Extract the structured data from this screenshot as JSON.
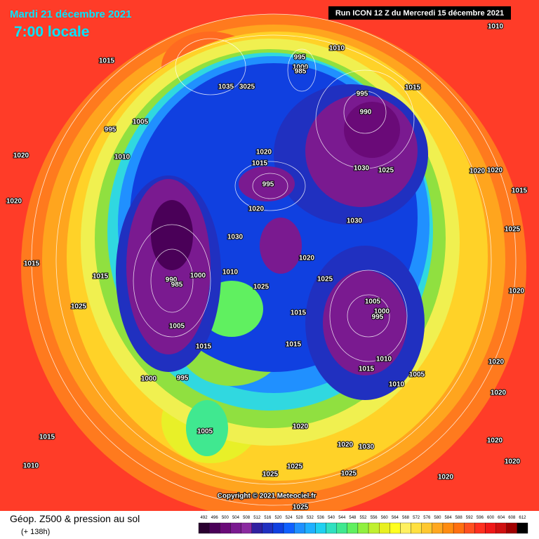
{
  "header": {
    "date": "Mardi 21 décembre 2021",
    "time": "7:00 locale",
    "run": "Run ICON 12 Z du Mercredi 15 décembre 2021"
  },
  "copyright": "Copyright © 2021 Meteociel.fr",
  "legend": {
    "title": "Géop. Z500 & pression au sol",
    "subtitle": "(+ 138h)",
    "ticks": [
      "492",
      "496",
      "500",
      "504",
      "508",
      "512",
      "516",
      "520",
      "524",
      "528",
      "532",
      "536",
      "540",
      "544",
      "548",
      "552",
      "556",
      "560",
      "564",
      "568",
      "572",
      "576",
      "580",
      "584",
      "588",
      "592",
      "596",
      "600",
      "604",
      "608",
      "612"
    ],
    "colors": [
      "#2a0030",
      "#4a0058",
      "#6a0a78",
      "#7a1a90",
      "#8a2aa0",
      "#3020a0",
      "#2030c0",
      "#1040e0",
      "#1060ff",
      "#2090ff",
      "#20b0ff",
      "#20d0f0",
      "#30e0c0",
      "#40e890",
      "#60f060",
      "#90f040",
      "#c0f030",
      "#e8f020",
      "#ffff20",
      "#fff060",
      "#ffe040",
      "#ffc830",
      "#ffa820",
      "#ff8c10",
      "#ff7010",
      "#ff5020",
      "#ff3020",
      "#f01818",
      "#d01010",
      "#a00000",
      "#000000"
    ]
  },
  "pressure_labels": [
    "1010",
    "1015",
    "1010",
    "995",
    "1000",
    "985",
    "1005",
    "995",
    "1010",
    "1020",
    "1020",
    "1015",
    "1025",
    "1015",
    "990",
    "985",
    "1000",
    "1005",
    "1015",
    "1000",
    "995",
    "1005",
    "1015",
    "1010",
    "1035",
    "3025",
    "1015",
    "1020",
    "995",
    "1020",
    "1030",
    "1010",
    "1025",
    "1020",
    "1025",
    "1015",
    "1015",
    "1005",
    "1000",
    "995",
    "1010",
    "1015",
    "1005",
    "1010",
    "990",
    "995",
    "1030",
    "1025",
    "1030",
    "1020",
    "1015",
    "1020",
    "1025",
    "1020",
    "1020",
    "1020",
    "1020",
    "1020",
    "1020",
    "1025",
    "1025",
    "1025",
    "1025",
    "1020",
    "1030",
    "1020",
    "1015"
  ]
}
